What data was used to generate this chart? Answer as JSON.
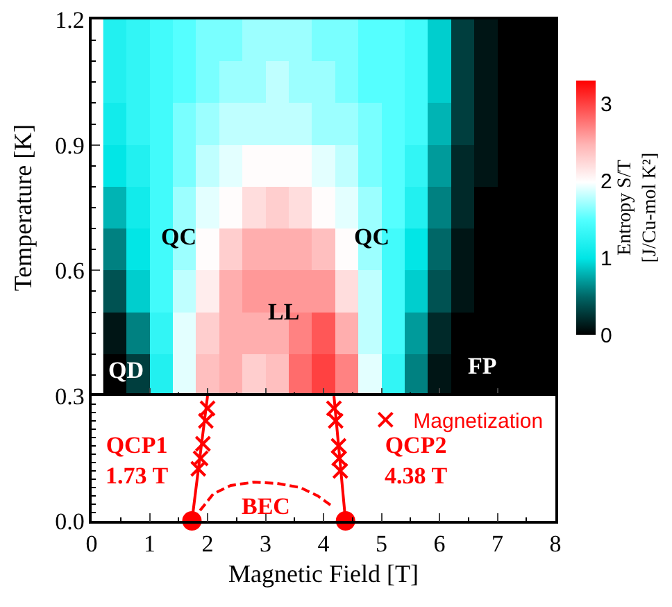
{
  "chart_data": [
    {
      "type": "heatmap",
      "ylabel": "Temperature [K]",
      "clabel": "Entropy S/T [J/Cu-mol K²]",
      "x": [
        0.4,
        0.8,
        1.2,
        1.6,
        2.0,
        2.4,
        2.8,
        3.2,
        3.6,
        4.0,
        4.4,
        4.8,
        5.2,
        5.6,
        6.0,
        6.4,
        6.8,
        7.2,
        7.6,
        8.0
      ],
      "cells": [
        [
          1.2,
          1.3,
          1.4,
          1.5,
          1.6,
          1.6,
          1.7,
          1.7,
          1.7,
          1.6,
          1.6,
          1.5,
          1.5,
          1.4,
          0.9,
          0.3,
          0.1,
          0,
          0,
          0
        ],
        [
          1.2,
          1.3,
          1.4,
          1.5,
          1.6,
          1.7,
          1.7,
          1.8,
          1.7,
          1.7,
          1.6,
          1.5,
          1.5,
          1.4,
          0.9,
          0.3,
          0.1,
          0,
          0,
          0
        ],
        [
          1.1,
          1.3,
          1.4,
          1.6,
          1.7,
          1.8,
          1.8,
          1.8,
          1.8,
          1.7,
          1.7,
          1.6,
          1.5,
          1.4,
          0.8,
          0.3,
          0.1,
          0,
          0,
          0
        ],
        [
          1.0,
          1.2,
          1.4,
          1.6,
          1.8,
          1.9,
          2.0,
          2.0,
          2.0,
          1.9,
          1.8,
          1.6,
          1.5,
          1.3,
          0.7,
          0.2,
          0.1,
          0,
          0,
          0
        ],
        [
          0.8,
          1.1,
          1.4,
          1.7,
          1.9,
          2.0,
          2.2,
          2.3,
          2.2,
          2.0,
          1.9,
          1.7,
          1.5,
          1.2,
          0.6,
          0.2,
          0,
          0,
          0,
          0
        ],
        [
          0.6,
          1.0,
          1.4,
          1.7,
          2.0,
          2.3,
          2.5,
          2.5,
          2.5,
          2.4,
          2.0,
          1.7,
          1.4,
          1.0,
          0.5,
          0.1,
          0,
          0,
          0,
          0
        ],
        [
          0.4,
          0.9,
          1.4,
          1.8,
          2.1,
          2.5,
          2.6,
          2.6,
          2.6,
          2.6,
          2.2,
          1.8,
          1.4,
          0.9,
          0.4,
          0.1,
          0,
          0,
          0,
          0
        ],
        [
          0.1,
          0.6,
          1.3,
          1.9,
          2.3,
          2.5,
          2.5,
          2.5,
          2.7,
          2.9,
          2.5,
          1.8,
          1.4,
          0.7,
          0.2,
          0,
          0,
          0,
          0,
          0
        ],
        [
          0,
          0.3,
          1.2,
          1.9,
          2.4,
          2.5,
          2.3,
          2.4,
          2.8,
          3.0,
          2.7,
          1.9,
          1.3,
          0.6,
          0.1,
          0,
          0,
          0,
          0,
          0
        ]
      ],
      "clim": [
        0,
        3.3
      ],
      "cticks": [
        0,
        1,
        2,
        3
      ],
      "xlim": [
        0,
        8
      ],
      "xticks": [
        0,
        1,
        2,
        3,
        4,
        5,
        6,
        7,
        8
      ],
      "ylim": [
        0.3,
        1.2
      ],
      "yticks": [
        {
          "value": 0.6,
          "label": "0.6"
        },
        {
          "value": 0.9,
          "label": "0.9"
        },
        {
          "value": 1.2,
          "label": "1.2"
        }
      ],
      "tick_labels": "y",
      "annotations": [
        "QC",
        "QC",
        "LL",
        "QD",
        "FP"
      ]
    },
    {
      "type": "line",
      "xlabel": "Magnetic Field [T]",
      "series": [
        {
          "type": "line",
          "color": "#ff0000",
          "line_style": "solid",
          "x": [
            1.73,
            2.0
          ],
          "values": [
            0,
            0.3
          ]
        },
        {
          "type": "line",
          "color": "#ff0000",
          "line_style": "solid",
          "x": [
            4.38,
            4.18
          ],
          "values": [
            0,
            0.3
          ]
        },
        {
          "type": "scatter",
          "name": "Magnetization",
          "color": "#ff0000",
          "marker": "cross",
          "x": [
            2.0,
            1.97,
            1.92,
            1.88,
            1.84,
            4.18,
            4.21,
            4.26,
            4.27,
            4.29
          ],
          "values": [
            0.27,
            0.24,
            0.185,
            0.15,
            0.125,
            0.27,
            0.24,
            0.18,
            0.15,
            0.12
          ]
        },
        {
          "type": "line",
          "color": "#ff0000",
          "line_style": "dashed",
          "x": [
            1.87,
            2.1,
            2.4,
            2.8,
            3.2,
            3.6,
            3.9,
            4.14
          ],
          "values": [
            0.025,
            0.065,
            0.085,
            0.093,
            0.09,
            0.08,
            0.06,
            0.036
          ]
        },
        {
          "type": "scatter",
          "color": "#ff0000",
          "marker": "circle",
          "x": [
            1.73,
            4.38
          ],
          "values": [
            0,
            0
          ]
        }
      ],
      "xlim": [
        0,
        8
      ],
      "xticks": [
        0,
        1,
        2,
        3,
        4,
        5,
        6,
        7,
        8
      ],
      "ylim": [
        0,
        0.3
      ],
      "yticks": [
        {
          "value": 0,
          "label": "0.0"
        },
        {
          "value": 0.3,
          "label": "0.3"
        }
      ],
      "legend": "top right",
      "annotations": [
        "QCP1\n1.73 T",
        "BEC",
        "QCP2\n4.38 T"
      ]
    }
  ]
}
